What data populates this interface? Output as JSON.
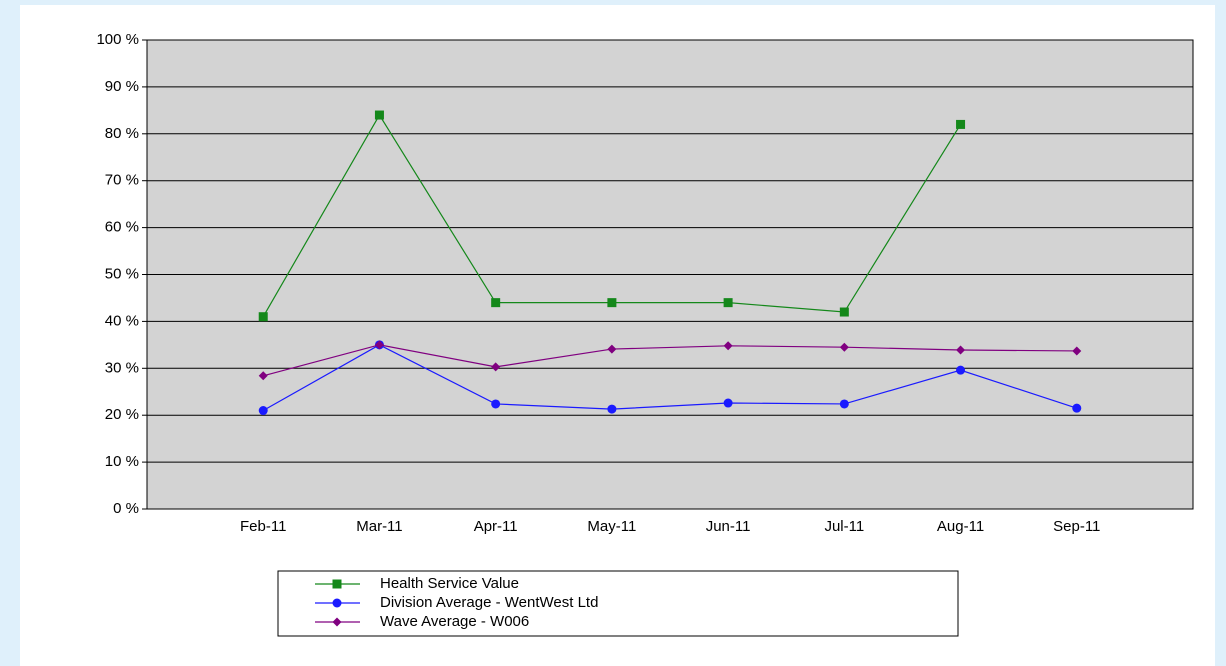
{
  "chart_data": {
    "type": "line",
    "categories": [
      null,
      "Feb-11",
      "Mar-11",
      "Apr-11",
      "May-11",
      "Jun-11",
      "Jul-11",
      "Aug-11",
      "Sep-11",
      null
    ],
    "series": [
      {
        "name": "Health Service Value",
        "color": "#14881a",
        "marker": "square",
        "values": [
          null,
          41,
          84,
          44,
          44,
          44,
          42,
          82,
          null,
          null
        ]
      },
      {
        "name": "Division Average - WentWest Ltd",
        "color": "#1a1aff",
        "marker": "circle",
        "values": [
          null,
          21,
          35,
          22.4,
          21.3,
          22.6,
          22.4,
          29.6,
          21.5,
          null
        ]
      },
      {
        "name": "Wave Average - W006",
        "color": "#800080",
        "marker": "diamond",
        "values": [
          null,
          28.4,
          35,
          30.3,
          34.1,
          34.8,
          34.5,
          33.9,
          33.7,
          null
        ]
      }
    ],
    "ylim": [
      0,
      100
    ],
    "yticks": [
      {
        "value": 0,
        "label": "0 %"
      },
      {
        "value": 10,
        "label": "10 %"
      },
      {
        "value": 20,
        "label": "20 %"
      },
      {
        "value": 30,
        "label": "30 %"
      },
      {
        "value": 40,
        "label": "40 %"
      },
      {
        "value": 50,
        "label": "50 %"
      },
      {
        "value": 60,
        "label": "60 %"
      },
      {
        "value": 70,
        "label": "70 %"
      },
      {
        "value": 80,
        "label": "80 %"
      },
      {
        "value": 90,
        "label": "90 %"
      },
      {
        "value": 100,
        "label": "100 %"
      }
    ],
    "grid": true,
    "plot_background": "#d3d3d3",
    "legend": "bottom"
  }
}
